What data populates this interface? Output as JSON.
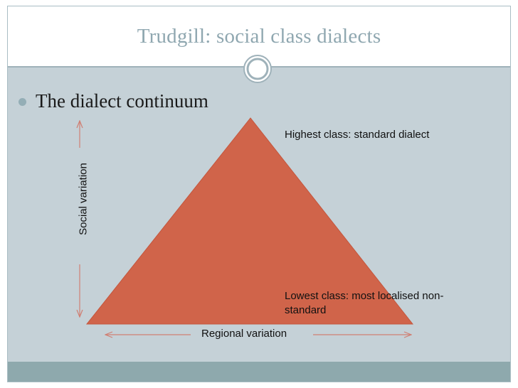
{
  "slide": {
    "title": "Trudgill: social class dialects",
    "bullet": "The dialect continuum"
  },
  "diagram": {
    "label_highest": "Highest class: standard dialect",
    "label_lowest_line1": "Lowest class: most localised non-",
    "label_lowest_line2": "standard",
    "label_regional": "Regional variation",
    "label_social": "Social variation"
  },
  "colors": {
    "title": "#8fa7b0",
    "header_line": "#9fb2ba",
    "content_bg": "#c5d1d7",
    "footer_bg": "#8ea9ad",
    "triangle_fill": "#d0644a",
    "arrow": "#d07f73"
  },
  "icons": {
    "ornament": "concentric-circle-icon",
    "bullet": "round-bullet-icon"
  }
}
